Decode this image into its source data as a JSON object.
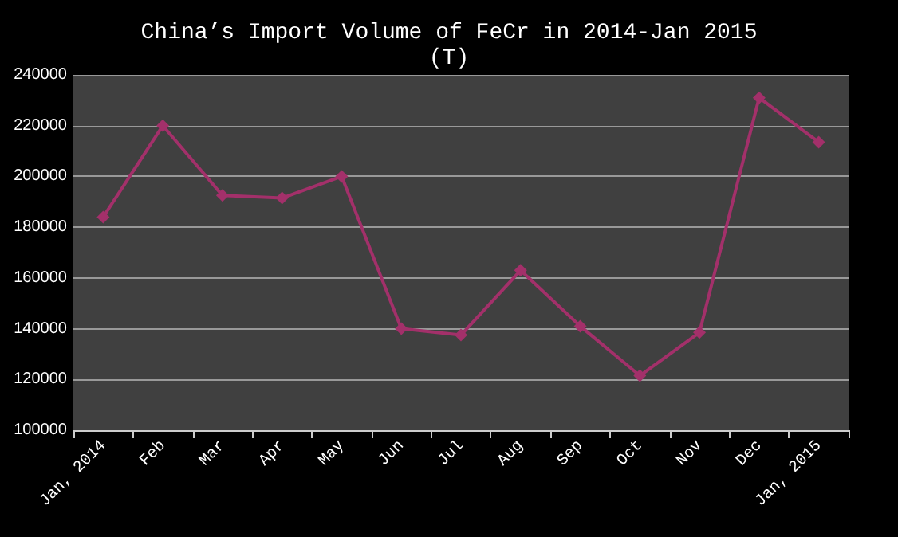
{
  "chart_data": {
    "type": "line",
    "title": "China’s Import Volume of FeCr in 2014-Jan 2015\n(T)",
    "categories": [
      "Jan, 2014",
      "Feb",
      "Mar",
      "Apr",
      "May",
      "Jun",
      "Jul",
      "Aug",
      "Sep",
      "Oct",
      "Nov",
      "Dec",
      "Jan, 2015"
    ],
    "series": [
      {
        "color": "#a3306a",
        "values": [
          184000,
          220000,
          192500,
          191500,
          200000,
          140000,
          137500,
          163000,
          141000,
          121500,
          138500,
          231000,
          213500
        ]
      }
    ],
    "ylim": [
      100000,
      240000
    ],
    "yticks": [
      100000,
      120000,
      140000,
      160000,
      180000,
      200000,
      220000,
      240000
    ],
    "grid": "y",
    "marker": "diamond",
    "line_style": "solid"
  }
}
